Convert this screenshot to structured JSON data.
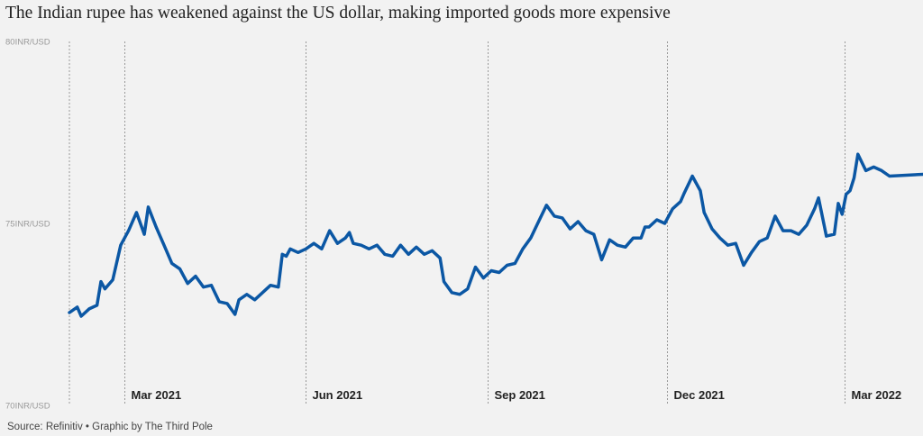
{
  "title": "The Indian rupee has weakened against the US dollar, making imported goods more expensive",
  "source": "Source: Refinitiv • Graphic by The Third Pole",
  "colors": {
    "line": "#0b57a4",
    "grid": "#9a9a9a",
    "background": "#f2f2f2"
  },
  "chart_data": {
    "type": "line",
    "title": "The Indian rupee has weakened against the US dollar, making imported goods more expensive",
    "xlabel": "",
    "ylabel": "INR/USD",
    "ylim": [
      70,
      80
    ],
    "yticks": [
      {
        "value": 80,
        "label": "80INR/USD"
      },
      {
        "value": 75,
        "label": "75INR/USD"
      },
      {
        "value": 70,
        "label": "70INR/USD"
      }
    ],
    "xlim": [
      "2021-02-01",
      "2022-04-10"
    ],
    "xticks": [
      {
        "date": "2021-03-01",
        "label": "Mar 2021"
      },
      {
        "date": "2021-06-01",
        "label": "Jun 2021"
      },
      {
        "date": "2021-09-01",
        "label": "Sep 2021"
      },
      {
        "date": "2021-12-01",
        "label": "Dec 2021"
      },
      {
        "date": "2022-03-01",
        "label": "Mar 2022"
      }
    ],
    "series": [
      {
        "name": "INR/USD",
        "points": [
          [
            "2021-02-01",
            72.55
          ],
          [
            "2021-02-05",
            72.7
          ],
          [
            "2021-02-07",
            72.45
          ],
          [
            "2021-02-11",
            72.65
          ],
          [
            "2021-02-15",
            72.75
          ],
          [
            "2021-02-17",
            73.4
          ],
          [
            "2021-02-19",
            73.2
          ],
          [
            "2021-02-23",
            73.45
          ],
          [
            "2021-02-27",
            74.4
          ],
          [
            "2021-03-03",
            74.8
          ],
          [
            "2021-03-07",
            75.3
          ],
          [
            "2021-03-11",
            74.7
          ],
          [
            "2021-03-13",
            75.45
          ],
          [
            "2021-03-17",
            74.9
          ],
          [
            "2021-03-21",
            74.4
          ],
          [
            "2021-03-25",
            73.9
          ],
          [
            "2021-03-29",
            73.75
          ],
          [
            "2021-04-02",
            73.35
          ],
          [
            "2021-04-06",
            73.55
          ],
          [
            "2021-04-10",
            73.25
          ],
          [
            "2021-04-14",
            73.3
          ],
          [
            "2021-04-18",
            72.85
          ],
          [
            "2021-04-22",
            72.8
          ],
          [
            "2021-04-26",
            72.5
          ],
          [
            "2021-04-28",
            72.9
          ],
          [
            "2021-05-02",
            73.05
          ],
          [
            "2021-05-06",
            72.9
          ],
          [
            "2021-05-10",
            73.1
          ],
          [
            "2021-05-14",
            73.3
          ],
          [
            "2021-05-18",
            73.25
          ],
          [
            "2021-05-20",
            74.15
          ],
          [
            "2021-05-22",
            74.1
          ],
          [
            "2021-05-24",
            74.3
          ],
          [
            "2021-05-28",
            74.2
          ],
          [
            "2021-06-01",
            74.3
          ],
          [
            "2021-06-05",
            74.45
          ],
          [
            "2021-06-09",
            74.3
          ],
          [
            "2021-06-13",
            74.8
          ],
          [
            "2021-06-17",
            74.45
          ],
          [
            "2021-06-21",
            74.6
          ],
          [
            "2021-06-23",
            74.75
          ],
          [
            "2021-06-25",
            74.45
          ],
          [
            "2021-06-29",
            74.4
          ],
          [
            "2021-07-03",
            74.3
          ],
          [
            "2021-07-07",
            74.4
          ],
          [
            "2021-07-11",
            74.15
          ],
          [
            "2021-07-15",
            74.1
          ],
          [
            "2021-07-19",
            74.4
          ],
          [
            "2021-07-23",
            74.15
          ],
          [
            "2021-07-27",
            74.35
          ],
          [
            "2021-07-31",
            74.15
          ],
          [
            "2021-08-04",
            74.25
          ],
          [
            "2021-08-08",
            74.05
          ],
          [
            "2021-08-10",
            73.4
          ],
          [
            "2021-08-14",
            73.1
          ],
          [
            "2021-08-18",
            73.05
          ],
          [
            "2021-08-22",
            73.2
          ],
          [
            "2021-08-26",
            73.8
          ],
          [
            "2021-08-30",
            73.5
          ],
          [
            "2021-09-03",
            73.7
          ],
          [
            "2021-09-07",
            73.65
          ],
          [
            "2021-09-11",
            73.85
          ],
          [
            "2021-09-15",
            73.9
          ],
          [
            "2021-09-19",
            74.3
          ],
          [
            "2021-09-23",
            74.6
          ],
          [
            "2021-09-27",
            75.05
          ],
          [
            "2021-10-01",
            75.5
          ],
          [
            "2021-10-05",
            75.2
          ],
          [
            "2021-10-09",
            75.15
          ],
          [
            "2021-10-13",
            74.85
          ],
          [
            "2021-10-17",
            75.05
          ],
          [
            "2021-10-21",
            74.8
          ],
          [
            "2021-10-25",
            74.7
          ],
          [
            "2021-10-29",
            74.0
          ],
          [
            "2021-11-02",
            74.55
          ],
          [
            "2021-11-06",
            74.4
          ],
          [
            "2021-11-10",
            74.35
          ],
          [
            "2021-11-14",
            74.6
          ],
          [
            "2021-11-18",
            74.6
          ],
          [
            "2021-11-20",
            74.9
          ],
          [
            "2021-11-22",
            74.9
          ],
          [
            "2021-11-26",
            75.1
          ],
          [
            "2021-11-30",
            75.0
          ],
          [
            "2021-12-04",
            75.4
          ],
          [
            "2021-12-08",
            75.6
          ],
          [
            "2021-12-10",
            75.85
          ],
          [
            "2021-12-14",
            76.3
          ],
          [
            "2021-12-18",
            75.9
          ],
          [
            "2021-12-20",
            75.3
          ],
          [
            "2021-12-24",
            74.85
          ],
          [
            "2021-12-28",
            74.6
          ],
          [
            "2022-01-01",
            74.4
          ],
          [
            "2022-01-05",
            74.45
          ],
          [
            "2022-01-09",
            73.85
          ],
          [
            "2022-01-13",
            74.2
          ],
          [
            "2022-01-17",
            74.5
          ],
          [
            "2022-01-21",
            74.6
          ],
          [
            "2022-01-25",
            75.2
          ],
          [
            "2022-01-29",
            74.8
          ],
          [
            "2022-02-02",
            74.8
          ],
          [
            "2022-02-06",
            74.7
          ],
          [
            "2022-02-10",
            74.95
          ],
          [
            "2022-02-14",
            75.4
          ],
          [
            "2022-02-16",
            75.7
          ],
          [
            "2022-02-20",
            74.65
          ],
          [
            "2022-02-24",
            74.7
          ],
          [
            "2022-02-26",
            75.55
          ],
          [
            "2022-02-28",
            75.25
          ],
          [
            "2022-03-02",
            75.8
          ],
          [
            "2022-03-04",
            75.9
          ],
          [
            "2022-03-06",
            76.25
          ],
          [
            "2022-03-08",
            76.9
          ],
          [
            "2022-03-12",
            76.45
          ],
          [
            "2022-03-16",
            76.55
          ],
          [
            "2022-03-20",
            76.45
          ],
          [
            "2022-03-24",
            76.3
          ],
          [
            "2022-04-10",
            76.35
          ]
        ]
      }
    ]
  }
}
